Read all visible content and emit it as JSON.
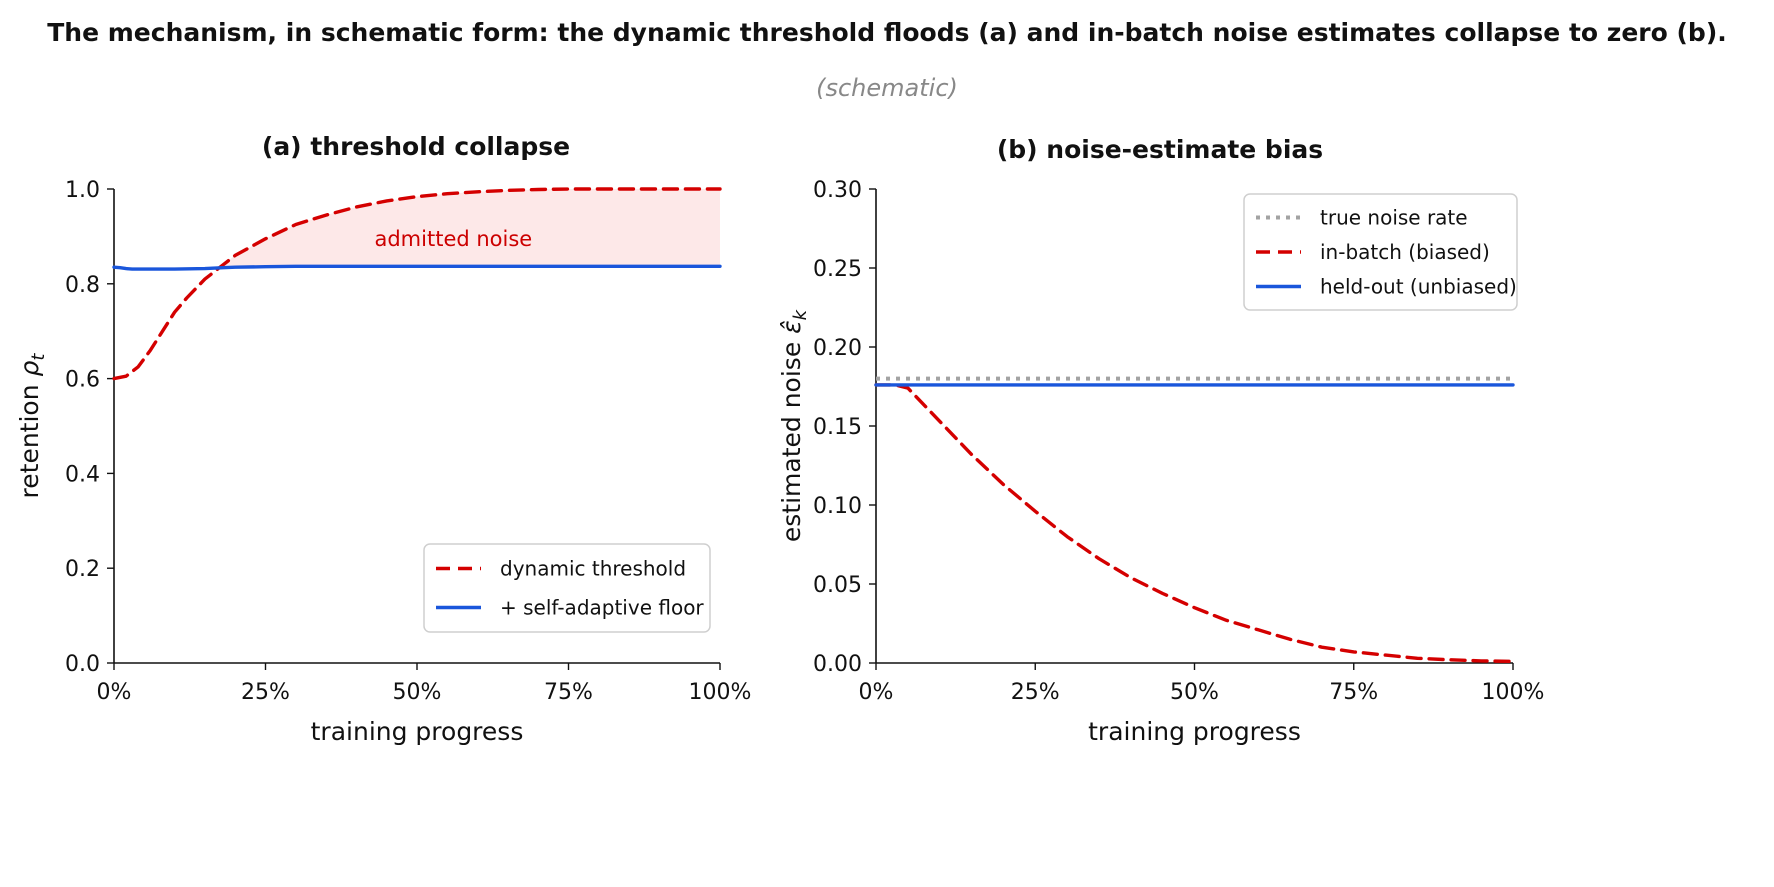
{
  "figure": {
    "title": "The mechanism, in schematic form: the dynamic threshold floods (a) and in-batch noise estimates collapse to zero (b).",
    "subtitle": "(schematic)"
  },
  "colors": {
    "red": "#d40000",
    "blue": "#1a56db",
    "gray": "#a3a3a3",
    "fill": "#fde8e8"
  },
  "chart_data": [
    {
      "type": "line",
      "title": "(a) threshold collapse",
      "xlabel": "training progress",
      "ylabel": "retention ρ_t",
      "ylabel_main": "retention ",
      "ylabel_symbol": "ρ",
      "ylabel_sub": "t",
      "xlim": [
        0,
        100
      ],
      "ylim": [
        0,
        1.0
      ],
      "xticks": [
        0,
        25,
        50,
        75,
        100
      ],
      "xtick_labels": [
        "0%",
        "25%",
        "50%",
        "75%",
        "100%"
      ],
      "yticks": [
        0.0,
        0.2,
        0.4,
        0.6,
        0.8,
        1.0
      ],
      "ytick_labels": [
        "0.0",
        "0.2",
        "0.4",
        "0.6",
        "0.8",
        "1.0"
      ],
      "annotation": {
        "text": "admitted noise",
        "x": 56,
        "y": 0.895
      },
      "shade_between": [
        "dynamic threshold",
        "+ self-adaptive floor"
      ],
      "legend": {
        "position": "lower-right"
      },
      "series": [
        {
          "name": "dynamic threshold",
          "style": "dashed",
          "color": "#d40000",
          "x": [
            0,
            2,
            4,
            6,
            8,
            10,
            12,
            15,
            18,
            20,
            25,
            30,
            35,
            40,
            45,
            50,
            55,
            60,
            65,
            70,
            75,
            80,
            85,
            90,
            95,
            100
          ],
          "y": [
            0.6,
            0.605,
            0.625,
            0.66,
            0.7,
            0.74,
            0.77,
            0.81,
            0.84,
            0.86,
            0.895,
            0.925,
            0.945,
            0.962,
            0.975,
            0.984,
            0.99,
            0.994,
            0.997,
            0.999,
            1.0,
            1.0,
            1.0,
            1.0,
            1.0,
            1.0
          ]
        },
        {
          "name": "+ self-adaptive floor",
          "style": "solid",
          "color": "#1a56db",
          "x": [
            0,
            1,
            2,
            3,
            5,
            10,
            15,
            18,
            20,
            25,
            30,
            40,
            50,
            60,
            70,
            80,
            90,
            100
          ],
          "y": [
            0.835,
            0.834,
            0.832,
            0.831,
            0.831,
            0.831,
            0.832,
            0.834,
            0.835,
            0.836,
            0.837,
            0.837,
            0.837,
            0.837,
            0.837,
            0.837,
            0.837,
            0.837
          ]
        }
      ]
    },
    {
      "type": "line",
      "title": "(b) noise-estimate bias",
      "xlabel": "training progress",
      "ylabel": "estimated noise ε̂_k",
      "ylabel_main": "estimated noise ",
      "ylabel_symbol": "ε̂",
      "ylabel_sub": "k",
      "xlim": [
        0,
        100
      ],
      "ylim": [
        0,
        0.3
      ],
      "xticks": [
        0,
        25,
        50,
        75,
        100
      ],
      "xtick_labels": [
        "0%",
        "25%",
        "50%",
        "75%",
        "100%"
      ],
      "yticks": [
        0.0,
        0.05,
        0.1,
        0.15,
        0.2,
        0.25,
        0.3
      ],
      "ytick_labels": [
        "0.00",
        "0.05",
        "0.10",
        "0.15",
        "0.20",
        "0.25",
        "0.30"
      ],
      "legend": {
        "position": "upper-right"
      },
      "series": [
        {
          "name": "true noise rate",
          "style": "dotted",
          "color": "#a3a3a3",
          "x": [
            0,
            100
          ],
          "y": [
            0.18,
            0.18
          ]
        },
        {
          "name": "in-batch (biased)",
          "style": "dashed",
          "color": "#d40000",
          "x": [
            0,
            3,
            5,
            10,
            15,
            20,
            25,
            30,
            35,
            40,
            45,
            50,
            55,
            60,
            65,
            70,
            75,
            80,
            85,
            90,
            95,
            100
          ],
          "y": [
            0.176,
            0.176,
            0.174,
            0.153,
            0.132,
            0.113,
            0.096,
            0.08,
            0.066,
            0.054,
            0.044,
            0.035,
            0.027,
            0.021,
            0.015,
            0.01,
            0.007,
            0.005,
            0.003,
            0.002,
            0.0013,
            0.001
          ]
        },
        {
          "name": "held-out (unbiased)",
          "style": "solid",
          "color": "#1a56db",
          "x": [
            0,
            100
          ],
          "y": [
            0.176,
            0.176
          ]
        }
      ]
    }
  ]
}
